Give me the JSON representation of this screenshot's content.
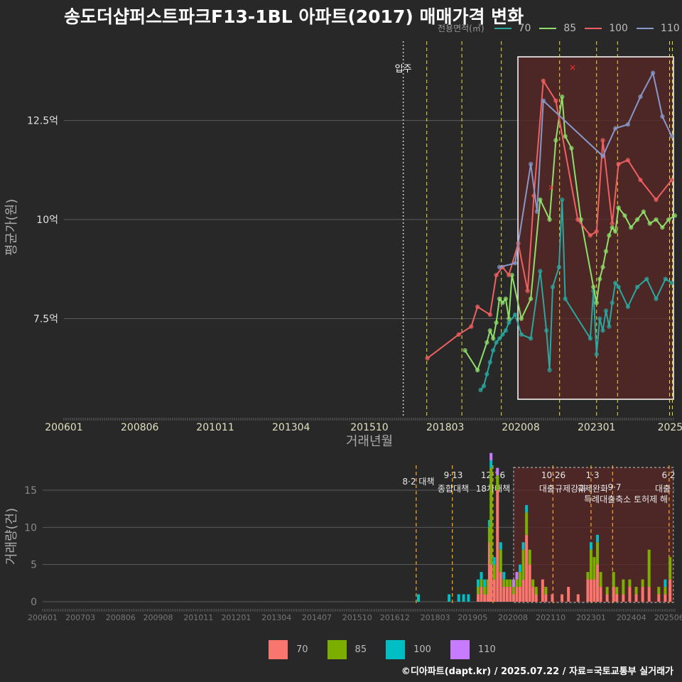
{
  "title": "송도더샵퍼스트파크F13-1BL 아파트(2017) 매매가격 변화",
  "credit": "©디아파트(dapt.kr) / 2025.07.22 / 자료=국토교통부 실거래가",
  "legend_top": {
    "title": "전용면적(㎡)",
    "items": [
      {
        "label": "70",
        "color": "#2aa8a0"
      },
      {
        "label": "85",
        "color": "#8ee06b"
      },
      {
        "label": "100",
        "color": "#f06060"
      },
      {
        "label": "110",
        "color": "#8898c8"
      }
    ]
  },
  "legend_bottom": {
    "items": [
      {
        "label": "70",
        "color": "#f8766d"
      },
      {
        "label": "85",
        "color": "#7cae00"
      },
      {
        "label": "100",
        "color": "#00bfc4"
      },
      {
        "label": "110",
        "color": "#c77cff"
      }
    ]
  },
  "chart_data": [
    {
      "type": "line",
      "title": "송도더샵퍼스트파크F13-1BL 아파트(2017) 매매가격 변화",
      "xlabel": "거래년월",
      "ylabel": "평균가(원)",
      "x_ticks": [
        "200601",
        "200806",
        "201011",
        "201304",
        "201510",
        "201803",
        "202008",
        "202301",
        "2025"
      ],
      "y_ticks": [
        {
          "value": 7.5,
          "label": "7.5억"
        },
        {
          "value": 10,
          "label": "10억"
        },
        {
          "value": 12.5,
          "label": "12.5억"
        }
      ],
      "ylim": [
        5.0,
        14.5
      ],
      "xlim": [
        2006.0,
        2025.5
      ],
      "move_in_label": "입주",
      "move_in_x": 2016.83,
      "policy_lines_x": [
        2017.58,
        2018.7,
        2019.96,
        2021.82,
        2023.0,
        2023.67,
        2025.33,
        2025.42
      ],
      "highlight_range_x": [
        2020.58,
        2025.5
      ],
      "grid": true,
      "series": [
        {
          "name": "70",
          "color": "#2aa8a0",
          "x": [
            2019.3,
            2019.4,
            2019.5,
            2019.6,
            2019.7,
            2019.8,
            2019.9,
            2020.0,
            2020.1,
            2020.2,
            2020.4,
            2020.6,
            2020.9,
            2021.2,
            2021.4,
            2021.5,
            2021.6,
            2021.8,
            2021.9,
            2022.0,
            2022.8,
            2022.9,
            2023.0,
            2023.1,
            2023.2,
            2023.3,
            2023.4,
            2023.5,
            2023.6,
            2023.7,
            2024.0,
            2024.3,
            2024.6,
            2024.9,
            2025.2,
            2025.4
          ],
          "y": [
            5.7,
            5.8,
            6.1,
            6.4,
            6.7,
            6.9,
            7.0,
            7.1,
            7.2,
            7.4,
            7.6,
            7.1,
            7.0,
            8.7,
            7.2,
            6.2,
            8.3,
            8.8,
            10.5,
            8.0,
            7.0,
            8.2,
            6.6,
            7.5,
            7.2,
            7.7,
            7.3,
            7.9,
            8.4,
            8.3,
            7.8,
            8.3,
            8.5,
            8.0,
            8.5,
            8.4
          ]
        },
        {
          "name": "85",
          "color": "#8ee06b",
          "x": [
            2018.8,
            2019.2,
            2019.5,
            2019.6,
            2019.7,
            2019.8,
            2019.9,
            2020.0,
            2020.1,
            2020.2,
            2020.3,
            2020.6,
            2020.9,
            2021.2,
            2021.5,
            2021.7,
            2021.9,
            2022.0,
            2022.2,
            2022.5,
            2022.9,
            2023.0,
            2023.1,
            2023.2,
            2023.3,
            2023.4,
            2023.5,
            2023.6,
            2023.7,
            2023.9,
            2024.1,
            2024.3,
            2024.5,
            2024.7,
            2024.9,
            2025.1,
            2025.3,
            2025.5
          ],
          "y": [
            6.7,
            6.2,
            6.9,
            7.2,
            7.0,
            7.4,
            8.0,
            7.9,
            8.0,
            7.5,
            8.6,
            7.5,
            8.0,
            10.5,
            10.0,
            12.0,
            13.1,
            12.1,
            11.8,
            10.0,
            8.3,
            7.9,
            8.5,
            8.8,
            9.2,
            9.6,
            9.8,
            9.7,
            10.3,
            10.1,
            9.8,
            10.0,
            10.2,
            9.9,
            10.0,
            9.8,
            10.0,
            10.1
          ]
        },
        {
          "name": "100",
          "color": "#f06060",
          "x": [
            2017.6,
            2018.6,
            2019.0,
            2019.2,
            2019.6,
            2019.8,
            2020.0,
            2020.2,
            2020.5,
            2020.8,
            2021.0,
            2021.3,
            2021.7,
            2022.4,
            2022.8,
            2023.0,
            2023.2,
            2023.5,
            2023.7,
            2024.0,
            2024.4,
            2024.9,
            2025.4
          ],
          "y": [
            6.5,
            7.1,
            7.3,
            7.8,
            7.6,
            8.6,
            8.8,
            8.6,
            9.4,
            8.2,
            10.6,
            13.5,
            13.0,
            10.0,
            9.6,
            9.7,
            12.0,
            9.9,
            11.4,
            11.5,
            11.0,
            10.5,
            11.0
          ]
        },
        {
          "name": "110",
          "color": "#8898c8",
          "x": [
            2019.9,
            2020.4,
            2020.9,
            2021.1,
            2021.3,
            2023.2,
            2023.6,
            2024.0,
            2024.4,
            2024.8,
            2025.1,
            2025.4
          ],
          "y": [
            8.8,
            8.9,
            11.4,
            10.2,
            13.0,
            11.6,
            12.3,
            12.4,
            13.1,
            13.7,
            12.6,
            12.1
          ]
        }
      ]
    },
    {
      "type": "bar",
      "ylabel": "거래량(건)",
      "x_ticks": [
        "200601",
        "200703",
        "200806",
        "200908",
        "201011",
        "201201",
        "201304",
        "201407",
        "201510",
        "201612",
        "201803",
        "201905",
        "202008",
        "202110",
        "202301",
        "202404",
        "202506"
      ],
      "y_ticks": [
        0,
        5,
        10,
        15
      ],
      "ylim": [
        0,
        18
      ],
      "stacked": true,
      "series_colors": {
        "70": "#f8766d",
        "85": "#7cae00",
        "100": "#00bfc4",
        "110": "#c77cff"
      },
      "policy_events": [
        {
          "date_label": "8·2 대책",
          "sub": "",
          "x": 2017.58
        },
        {
          "date_label": "9·13",
          "sub": "종합대책",
          "x": 2018.7
        },
        {
          "date_label": "12·16",
          "sub": "18차대책",
          "x": 2019.96
        },
        {
          "date_label": "10·26",
          "sub": "대출규제강화",
          "x": 2021.82
        },
        {
          "date_label": "1·3",
          "sub": "규제완화",
          "x": 2023.0
        },
        {
          "date_label": "9·7",
          "sub": "특례대출축소 토허제 해",
          "x": 2023.67
        },
        {
          "date_label": "6·2",
          "sub": "대출",
          "x": 2025.42
        }
      ],
      "bars": [
        {
          "x": 2017.65,
          "v": {
            "100": 1
          }
        },
        {
          "x": 2018.6,
          "v": {
            "100": 1
          }
        },
        {
          "x": 2018.9,
          "v": {
            "100": 1
          }
        },
        {
          "x": 2019.05,
          "v": {
            "100": 1
          }
        },
        {
          "x": 2019.2,
          "v": {
            "100": 1
          }
        },
        {
          "x": 2019.5,
          "v": {
            "70": 1,
            "85": 1,
            "100": 1
          }
        },
        {
          "x": 2019.6,
          "v": {
            "70": 2,
            "85": 1,
            "100": 1
          }
        },
        {
          "x": 2019.7,
          "v": {
            "70": 1,
            "85": 1,
            "100": 1
          }
        },
        {
          "x": 2019.8,
          "v": {
            "70": 1,
            "85": 2
          }
        },
        {
          "x": 2019.85,
          "v": {
            "70": 8,
            "85": 2,
            "100": 1
          }
        },
        {
          "x": 2019.9,
          "v": {
            "70": 5,
            "85": 13,
            "100": 1,
            "110": 1
          }
        },
        {
          "x": 2020.0,
          "v": {
            "70": 3,
            "85": 2,
            "100": 1
          }
        },
        {
          "x": 2020.1,
          "v": {
            "70": 15,
            "85": 2,
            "110": 1
          }
        },
        {
          "x": 2020.2,
          "v": {
            "70": 4,
            "85": 3,
            "100": 1
          }
        },
        {
          "x": 2020.3,
          "v": {
            "70": 2,
            "85": 1,
            "100": 1
          }
        },
        {
          "x": 2020.4,
          "v": {
            "70": 2,
            "85": 1
          }
        },
        {
          "x": 2020.5,
          "v": {
            "70": 2,
            "85": 1
          }
        },
        {
          "x": 2020.6,
          "v": {
            "70": 1,
            "85": 1,
            "110": 1
          }
        },
        {
          "x": 2020.7,
          "v": {
            "70": 2,
            "85": 1,
            "110": 1
          }
        },
        {
          "x": 2020.8,
          "v": {
            "70": 2,
            "85": 2,
            "100": 1
          }
        },
        {
          "x": 2020.9,
          "v": {
            "70": 3,
            "85": 4,
            "100": 1
          }
        },
        {
          "x": 2021.0,
          "v": {
            "70": 9,
            "85": 3,
            "100": 1
          }
        },
        {
          "x": 2021.1,
          "v": {
            "70": 5,
            "85": 2
          }
        },
        {
          "x": 2021.2,
          "v": {
            "70": 2,
            "85": 1
          }
        },
        {
          "x": 2021.3,
          "v": {
            "70": 1,
            "85": 1
          }
        },
        {
          "x": 2021.5,
          "v": {
            "70": 3
          }
        },
        {
          "x": 2021.6,
          "v": {
            "70": 1,
            "85": 1
          }
        },
        {
          "x": 2021.8,
          "v": {
            "70": 1
          }
        },
        {
          "x": 2022.1,
          "v": {
            "70": 1
          }
        },
        {
          "x": 2022.3,
          "v": {
            "70": 2
          }
        },
        {
          "x": 2022.6,
          "v": {
            "70": 1
          }
        },
        {
          "x": 2022.9,
          "v": {
            "70": 3,
            "85": 1
          }
        },
        {
          "x": 2023.0,
          "v": {
            "70": 3,
            "85": 4,
            "100": 1
          }
        },
        {
          "x": 2023.1,
          "v": {
            "70": 3,
            "85": 3
          }
        },
        {
          "x": 2023.2,
          "v": {
            "70": 5,
            "85": 3,
            "100": 1
          }
        },
        {
          "x": 2023.3,
          "v": {
            "70": 2,
            "85": 2
          }
        },
        {
          "x": 2023.5,
          "v": {
            "70": 1,
            "85": 1
          }
        },
        {
          "x": 2023.7,
          "v": {
            "70": 2,
            "85": 2
          }
        },
        {
          "x": 2023.8,
          "v": {
            "70": 1,
            "85": 1
          }
        },
        {
          "x": 2024.0,
          "v": {
            "70": 1,
            "85": 2
          }
        },
        {
          "x": 2024.2,
          "v": {
            "70": 2,
            "85": 1
          }
        },
        {
          "x": 2024.4,
          "v": {
            "70": 1,
            "85": 1
          }
        },
        {
          "x": 2024.6,
          "v": {
            "70": 2,
            "85": 1
          }
        },
        {
          "x": 2024.8,
          "v": {
            "70": 2,
            "85": 5
          }
        },
        {
          "x": 2025.1,
          "v": {
            "70": 1,
            "85": 1
          }
        },
        {
          "x": 2025.3,
          "v": {
            "70": 1,
            "85": 1,
            "100": 1
          }
        },
        {
          "x": 2025.45,
          "v": {
            "70": 3,
            "85": 3
          }
        }
      ]
    }
  ]
}
